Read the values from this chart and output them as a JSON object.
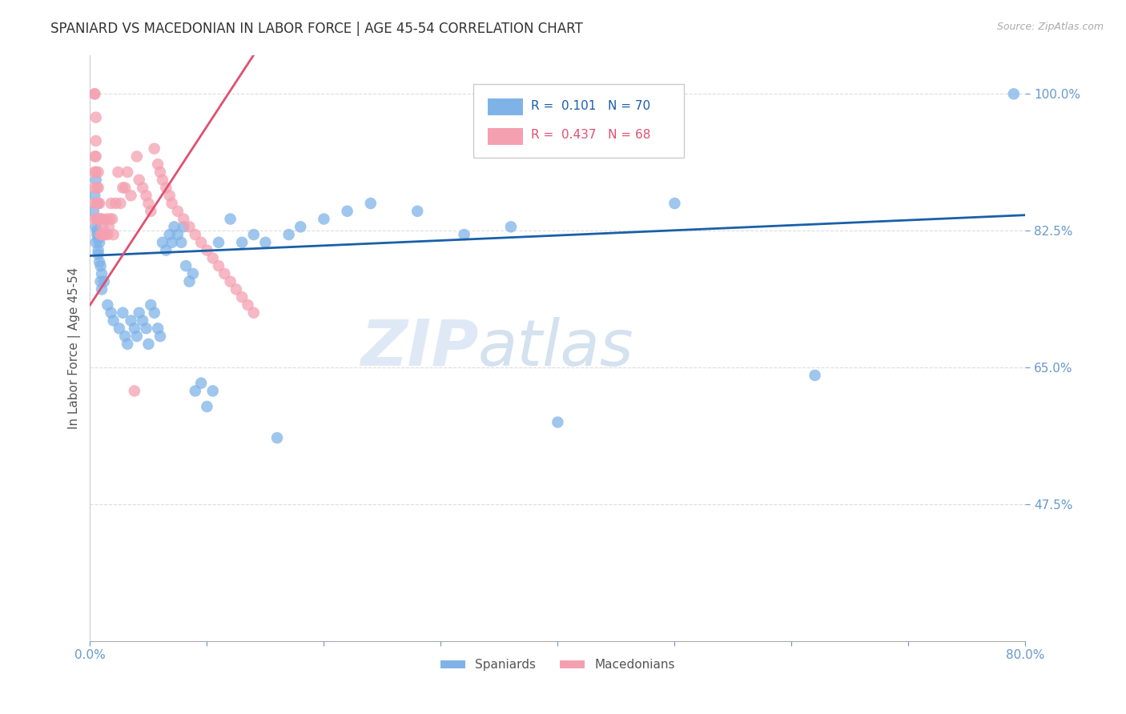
{
  "title": "SPANIARD VS MACEDONIAN IN LABOR FORCE | AGE 45-54 CORRELATION CHART",
  "source_text": "Source: ZipAtlas.com",
  "ylabel": "In Labor Force | Age 45-54",
  "xlim": [
    0.0,
    0.8
  ],
  "ylim": [
    0.3,
    1.05
  ],
  "yticks": [
    0.475,
    0.65,
    0.825,
    1.0
  ],
  "yticklabels": [
    "47.5%",
    "65.0%",
    "82.5%",
    "100.0%"
  ],
  "blue_color": "#7fb3e8",
  "pink_color": "#f4a0b0",
  "blue_line_color": "#1a5fa8",
  "pink_line_color": "#e05070",
  "R_blue": 0.101,
  "N_blue": 70,
  "R_pink": 0.437,
  "N_pink": 68,
  "legend_blue_label": "Spaniards",
  "legend_pink_label": "Macedonians",
  "watermark_zip": "ZIP",
  "watermark_atlas": "atlas",
  "blue_x": [
    0.003,
    0.004,
    0.005,
    0.005,
    0.005,
    0.006,
    0.006,
    0.006,
    0.006,
    0.007,
    0.007,
    0.007,
    0.008,
    0.008,
    0.009,
    0.009,
    0.01,
    0.01,
    0.012,
    0.015,
    0.018,
    0.02,
    0.025,
    0.028,
    0.03,
    0.032,
    0.035,
    0.038,
    0.04,
    0.042,
    0.045,
    0.048,
    0.05,
    0.052,
    0.055,
    0.058,
    0.06,
    0.062,
    0.065,
    0.068,
    0.07,
    0.072,
    0.075,
    0.078,
    0.08,
    0.082,
    0.085,
    0.088,
    0.09,
    0.095,
    0.1,
    0.105,
    0.11,
    0.12,
    0.13,
    0.14,
    0.15,
    0.16,
    0.17,
    0.18,
    0.2,
    0.22,
    0.24,
    0.28,
    0.32,
    0.36,
    0.4,
    0.5,
    0.62,
    0.79
  ],
  "blue_y": [
    0.85,
    0.87,
    0.89,
    0.83,
    0.81,
    0.82,
    0.86,
    0.84,
    0.825,
    0.8,
    0.815,
    0.795,
    0.785,
    0.81,
    0.78,
    0.76,
    0.77,
    0.75,
    0.76,
    0.73,
    0.72,
    0.71,
    0.7,
    0.72,
    0.69,
    0.68,
    0.71,
    0.7,
    0.69,
    0.72,
    0.71,
    0.7,
    0.68,
    0.73,
    0.72,
    0.7,
    0.69,
    0.81,
    0.8,
    0.82,
    0.81,
    0.83,
    0.82,
    0.81,
    0.83,
    0.78,
    0.76,
    0.77,
    0.62,
    0.63,
    0.6,
    0.62,
    0.81,
    0.84,
    0.81,
    0.82,
    0.81,
    0.56,
    0.82,
    0.83,
    0.84,
    0.85,
    0.86,
    0.85,
    0.82,
    0.83,
    0.58,
    0.86,
    0.64,
    1.0
  ],
  "pink_x": [
    0.004,
    0.004,
    0.004,
    0.004,
    0.004,
    0.004,
    0.004,
    0.005,
    0.005,
    0.005,
    0.005,
    0.006,
    0.006,
    0.006,
    0.007,
    0.007,
    0.007,
    0.008,
    0.008,
    0.009,
    0.009,
    0.01,
    0.01,
    0.011,
    0.012,
    0.013,
    0.014,
    0.015,
    0.016,
    0.017,
    0.018,
    0.019,
    0.02,
    0.022,
    0.024,
    0.026,
    0.028,
    0.03,
    0.032,
    0.035,
    0.038,
    0.04,
    0.042,
    0.045,
    0.048,
    0.05,
    0.052,
    0.055,
    0.058,
    0.06,
    0.062,
    0.065,
    0.068,
    0.07,
    0.075,
    0.08,
    0.085,
    0.09,
    0.095,
    0.1,
    0.105,
    0.11,
    0.115,
    0.12,
    0.125,
    0.13,
    0.135,
    0.14
  ],
  "pink_y": [
    1.0,
    1.0,
    0.92,
    0.9,
    0.88,
    0.86,
    0.84,
    0.97,
    0.94,
    0.92,
    0.9,
    0.88,
    0.86,
    0.84,
    0.9,
    0.88,
    0.86,
    0.84,
    0.86,
    0.84,
    0.82,
    0.84,
    0.82,
    0.83,
    0.82,
    0.82,
    0.84,
    0.82,
    0.83,
    0.84,
    0.86,
    0.84,
    0.82,
    0.86,
    0.9,
    0.86,
    0.88,
    0.88,
    0.9,
    0.87,
    0.62,
    0.92,
    0.89,
    0.88,
    0.87,
    0.86,
    0.85,
    0.93,
    0.91,
    0.9,
    0.89,
    0.88,
    0.87,
    0.86,
    0.85,
    0.84,
    0.83,
    0.82,
    0.81,
    0.8,
    0.79,
    0.78,
    0.77,
    0.76,
    0.75,
    0.74,
    0.73,
    0.72
  ],
  "blue_line_x": [
    0.0,
    0.8
  ],
  "blue_line_y": [
    0.793,
    0.845
  ],
  "pink_line_x": [
    0.0,
    0.14
  ],
  "pink_line_y": [
    0.73,
    1.05
  ],
  "grid_color": "#dddddd",
  "background_color": "#ffffff",
  "title_color": "#333333",
  "tick_color": "#6699cc"
}
